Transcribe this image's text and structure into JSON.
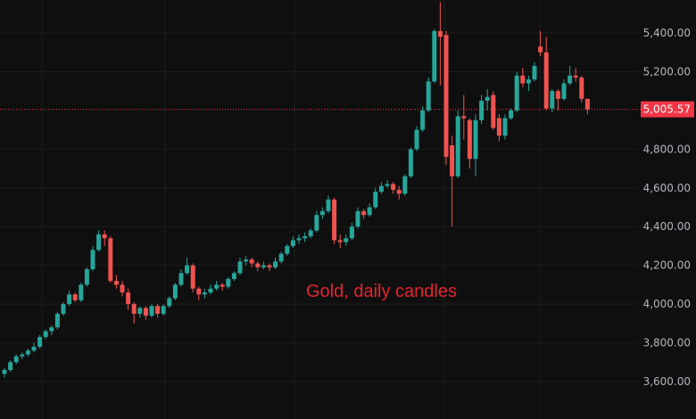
{
  "chart_data": {
    "type": "candlestick",
    "title": "",
    "annotation": "Gold, daily candles",
    "y_ticks": [
      5400,
      5200,
      4800,
      4600,
      4400,
      4200,
      4000,
      3800,
      3600
    ],
    "y_tick_labels": [
      "5,400.00",
      "5,200.00",
      "4,800.00",
      "4,600.00",
      "4,400.00",
      "4,200.00",
      "4,000.00",
      "3,800.00",
      "3,600.00"
    ],
    "ylim": [
      3540,
      5560
    ],
    "last_price": 5005.57,
    "last_price_label": "5,005.57",
    "grid": true,
    "colors": {
      "up": "#26a69a",
      "down": "#ef5350",
      "background": "#0f0f0f",
      "annotation": "#e5232f",
      "last_price": "#f23645"
    },
    "candles": [
      [
        3640,
        3670,
        3620,
        3660
      ],
      [
        3660,
        3710,
        3650,
        3700
      ],
      [
        3700,
        3740,
        3690,
        3730
      ],
      [
        3730,
        3750,
        3715,
        3740
      ],
      [
        3740,
        3770,
        3730,
        3760
      ],
      [
        3760,
        3800,
        3750,
        3780
      ],
      [
        3780,
        3840,
        3770,
        3830
      ],
      [
        3830,
        3870,
        3820,
        3860
      ],
      [
        3860,
        3890,
        3840,
        3880
      ],
      [
        3880,
        3960,
        3870,
        3950
      ],
      [
        3950,
        4010,
        3940,
        4000
      ],
      [
        4000,
        4070,
        3990,
        4050
      ],
      [
        4050,
        4060,
        4010,
        4020
      ],
      [
        4020,
        4110,
        4010,
        4100
      ],
      [
        4100,
        4190,
        4090,
        4180
      ],
      [
        4180,
        4300,
        4170,
        4280
      ],
      [
        4280,
        4380,
        4270,
        4360
      ],
      [
        4360,
        4380,
        4300,
        4340
      ],
      [
        4340,
        4350,
        4110,
        4120
      ],
      [
        4120,
        4150,
        4080,
        4100
      ],
      [
        4100,
        4120,
        4040,
        4060
      ],
      [
        4060,
        4080,
        3970,
        4000
      ],
      [
        4000,
        4010,
        3900,
        3950
      ],
      [
        3950,
        3990,
        3930,
        3980
      ],
      [
        3980,
        3990,
        3920,
        3940
      ],
      [
        3940,
        4000,
        3930,
        3990
      ],
      [
        3990,
        4000,
        3930,
        3950
      ],
      [
        3950,
        4000,
        3940,
        3990
      ],
      [
        3990,
        4040,
        3980,
        4030
      ],
      [
        4030,
        4110,
        4020,
        4100
      ],
      [
        4100,
        4180,
        4090,
        4160
      ],
      [
        4160,
        4240,
        4150,
        4200
      ],
      [
        4200,
        4210,
        4060,
        4080
      ],
      [
        4080,
        4090,
        4020,
        4050
      ],
      [
        4050,
        4080,
        4030,
        4060
      ],
      [
        4060,
        4100,
        4050,
        4080
      ],
      [
        4080,
        4120,
        4070,
        4100
      ],
      [
        4100,
        4110,
        4070,
        4090
      ],
      [
        4090,
        4140,
        4080,
        4130
      ],
      [
        4130,
        4170,
        4120,
        4160
      ],
      [
        4160,
        4240,
        4150,
        4220
      ],
      [
        4220,
        4250,
        4200,
        4230
      ],
      [
        4230,
        4240,
        4190,
        4210
      ],
      [
        4210,
        4220,
        4170,
        4190
      ],
      [
        4190,
        4220,
        4180,
        4200
      ],
      [
        4200,
        4210,
        4170,
        4190
      ],
      [
        4190,
        4240,
        4180,
        4220
      ],
      [
        4220,
        4270,
        4210,
        4260
      ],
      [
        4260,
        4310,
        4250,
        4300
      ],
      [
        4300,
        4350,
        4290,
        4330
      ],
      [
        4330,
        4360,
        4310,
        4340
      ],
      [
        4340,
        4370,
        4320,
        4350
      ],
      [
        4350,
        4390,
        4340,
        4380
      ],
      [
        4380,
        4480,
        4370,
        4460
      ],
      [
        4460,
        4500,
        4440,
        4480
      ],
      [
        4480,
        4560,
        4470,
        4540
      ],
      [
        4540,
        4550,
        4310,
        4330
      ],
      [
        4330,
        4360,
        4290,
        4320
      ],
      [
        4320,
        4360,
        4300,
        4340
      ],
      [
        4340,
        4420,
        4330,
        4400
      ],
      [
        4400,
        4500,
        4390,
        4480
      ],
      [
        4480,
        4490,
        4440,
        4460
      ],
      [
        4460,
        4520,
        4450,
        4500
      ],
      [
        4500,
        4600,
        4490,
        4580
      ],
      [
        4580,
        4630,
        4570,
        4610
      ],
      [
        4610,
        4640,
        4600,
        4620
      ],
      [
        4620,
        4630,
        4570,
        4590
      ],
      [
        4590,
        4610,
        4540,
        4570
      ],
      [
        4570,
        4670,
        4560,
        4660
      ],
      [
        4660,
        4810,
        4650,
        4800
      ],
      [
        4800,
        4920,
        4790,
        4900
      ],
      [
        4900,
        5020,
        4890,
        5000
      ],
      [
        5000,
        5170,
        4990,
        5150
      ],
      [
        5150,
        5420,
        5140,
        5410
      ],
      [
        5410,
        5560,
        5130,
        5380
      ],
      [
        5390,
        5410,
        4720,
        4760
      ],
      [
        4820,
        4870,
        4400,
        4660
      ],
      [
        4660,
        5000,
        4650,
        4970
      ],
      [
        4970,
        5080,
        4850,
        4960
      ],
      [
        4950,
        4960,
        4700,
        4750
      ],
      [
        4750,
        4980,
        4660,
        4950
      ],
      [
        4950,
        5080,
        4930,
        5050
      ],
      [
        5050,
        5110,
        5000,
        5070
      ],
      [
        5080,
        5100,
        4900,
        4910
      ],
      [
        4960,
        4980,
        4840,
        4870
      ],
      [
        4870,
        4980,
        4850,
        4960
      ],
      [
        4960,
        5010,
        4950,
        5000
      ],
      [
        5000,
        5200,
        4990,
        5180
      ],
      [
        5180,
        5220,
        5120,
        5140
      ],
      [
        5140,
        5180,
        5100,
        5160
      ],
      [
        5160,
        5250,
        5150,
        5230
      ],
      [
        5330,
        5410,
        5280,
        5300
      ],
      [
        5300,
        5380,
        5000,
        5010
      ],
      [
        5010,
        5110,
        4990,
        5100
      ],
      [
        5100,
        5110,
        5000,
        5060
      ],
      [
        5060,
        5160,
        5050,
        5140
      ],
      [
        5140,
        5230,
        5130,
        5180
      ],
      [
        5180,
        5220,
        5150,
        5170
      ],
      [
        5170,
        5180,
        5040,
        5060
      ],
      [
        5060,
        5060,
        4980,
        5005.57
      ]
    ]
  }
}
